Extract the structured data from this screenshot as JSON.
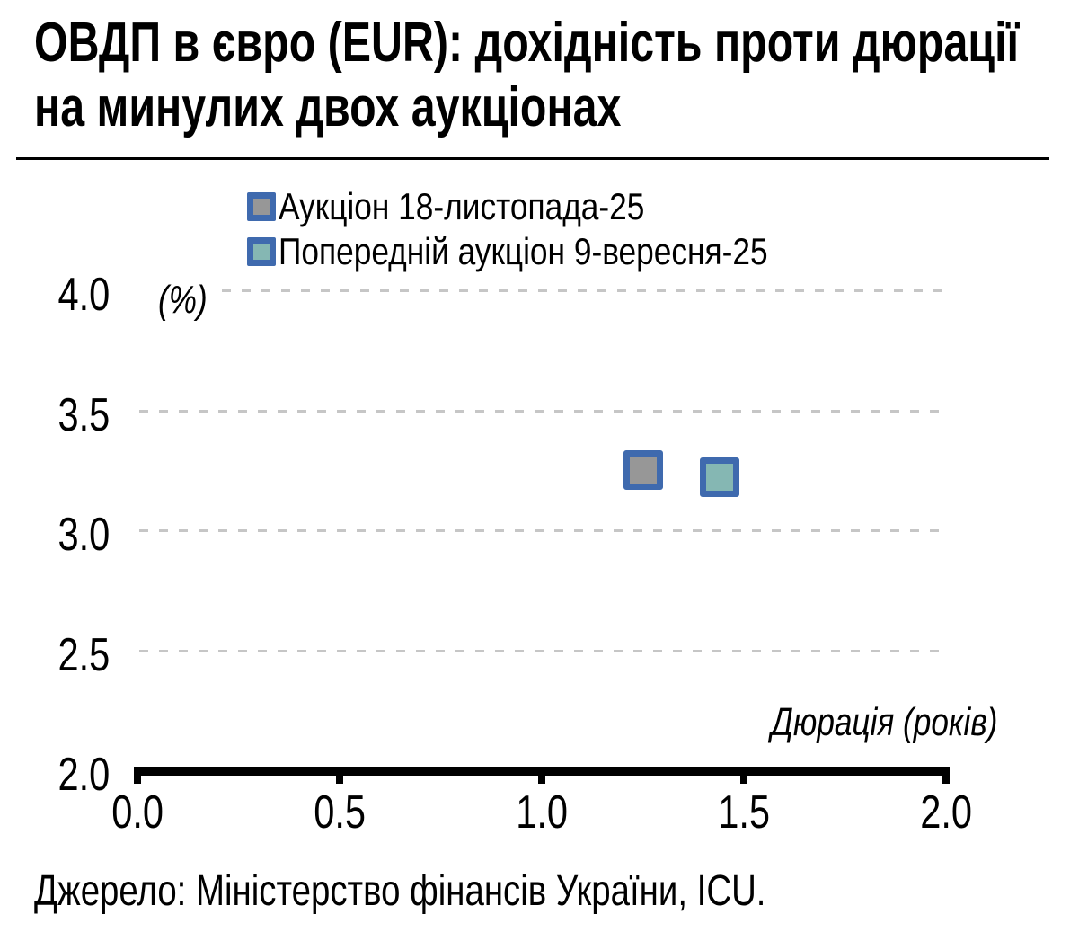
{
  "header": {
    "title_lines": [
      "ОВДП в євро (EUR): дохідність проти дюрації",
      "на минулих двох аукціонах"
    ]
  },
  "chart_data": {
    "type": "scatter",
    "title": "ОВДП в євро (EUR): дохідність проти дюрації на минулих двох аукціонах",
    "xlabel": "Дюрація (років)",
    "ylabel": "(%)",
    "xlim": [
      0.0,
      2.0
    ],
    "ylim": [
      2.0,
      4.0
    ],
    "xticks": [
      "0.0",
      "0.5",
      "1.0",
      "1.5",
      "2.0"
    ],
    "yticks": [
      "4.0",
      "3.5",
      "3.0",
      "2.5",
      "2.0"
    ],
    "grid": "horizontal-dashed",
    "gridline_color": "#C6C6C6",
    "axis_color": "#000000",
    "legend_position": "top",
    "series": [
      {
        "name": "Аукціон 18-листопада-25",
        "marker": "square",
        "fill": "#979797",
        "border": "#3F6AAE",
        "points": [
          {
            "x": 1.25,
            "y": 3.25
          }
        ]
      },
      {
        "name": "Попередній аукціон 9-вересня-25",
        "marker": "square",
        "fill": "#85B7B3",
        "border": "#3F6AAE",
        "points": [
          {
            "x": 1.44,
            "y": 3.22
          }
        ]
      }
    ]
  },
  "footer": {
    "source": "Джерело: Міністерство фінансів України, ICU."
  }
}
